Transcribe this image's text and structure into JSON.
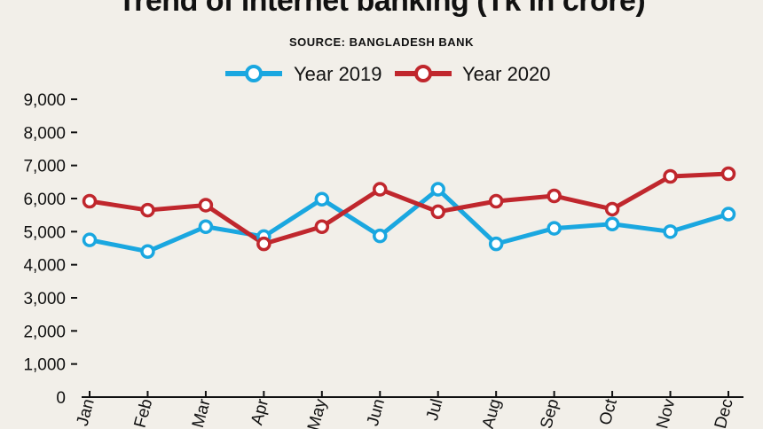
{
  "chart_data": {
    "type": "line",
    "title": "Trend of internet banking (Tk in crore)",
    "subtitle": "SOURCE: BANGLADESH BANK",
    "categories": [
      "Jan",
      "Feb",
      "Mar",
      "Apr",
      "May",
      "Jun",
      "Jul",
      "Aug",
      "Sep",
      "Oct",
      "Nov",
      "Dec"
    ],
    "series": [
      {
        "name": "Year 2019",
        "color": "#1aa7e0",
        "values": [
          4750,
          4400,
          5150,
          4850,
          5980,
          4870,
          6280,
          4630,
          5100,
          5230,
          5000,
          5530
        ]
      },
      {
        "name": "Year 2020",
        "color": "#c0272d",
        "values": [
          5920,
          5650,
          5800,
          4630,
          5150,
          6280,
          5600,
          5920,
          6080,
          5680,
          6670,
          6750
        ]
      }
    ],
    "yticks": [
      "9,000",
      "8,000",
      "7,000",
      "6,000",
      "5,000",
      "4,000",
      "3,000",
      "2,000",
      "1,000",
      "0"
    ],
    "ylim": [
      0,
      9000
    ],
    "legend_position": "top-center",
    "grid": false
  }
}
